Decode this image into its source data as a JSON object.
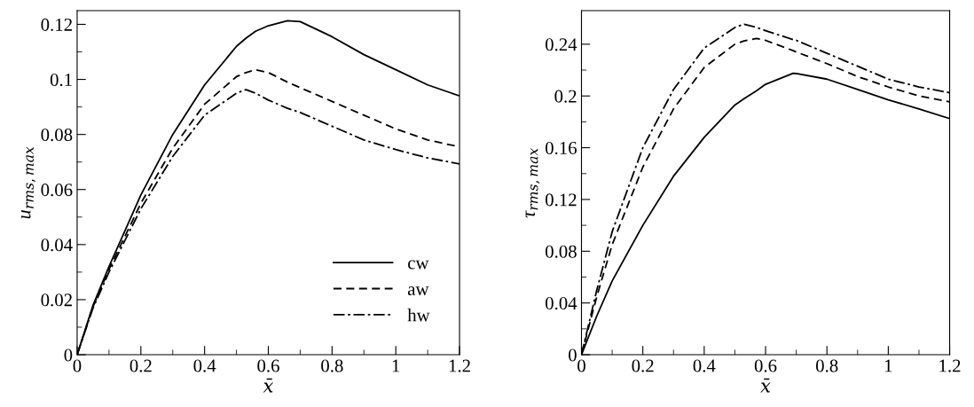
{
  "chart_data": [
    {
      "type": "line",
      "xlabel": "x̄",
      "ylabel": "u$_{rms,max}$",
      "xlim": [
        0,
        1.2
      ],
      "ylim": [
        0,
        0.125
      ],
      "xticks": [
        0,
        0.2,
        0.4,
        0.6,
        0.8,
        1,
        1.2
      ],
      "yticks": [
        0,
        0.02,
        0.04,
        0.06,
        0.08,
        0.1,
        0.12
      ],
      "legend": "bottom right",
      "grid": false,
      "x": [
        0,
        0.05,
        0.1,
        0.2,
        0.3,
        0.4,
        0.5,
        0.53,
        0.56,
        0.6,
        0.66,
        0.7,
        0.8,
        0.9,
        1,
        1.1,
        1.2
      ],
      "series": [
        {
          "name": "cw",
          "color": "#000000",
          "line_style": "solid",
          "values": [
            0,
            0.018,
            0.032,
            0.058,
            0.08,
            0.098,
            0.112,
            0.115,
            0.1175,
            0.1195,
            0.1213,
            0.121,
            0.1155,
            0.109,
            0.1035,
            0.098,
            0.094
          ]
        },
        {
          "name": "aw",
          "color": "#000000",
          "line_style": "dashed",
          "values": [
            0,
            0.0175,
            0.031,
            0.055,
            0.075,
            0.091,
            0.101,
            0.1025,
            0.1035,
            0.1025,
            0.099,
            0.097,
            0.092,
            0.087,
            0.082,
            0.078,
            0.0755
          ]
        },
        {
          "name": "hw",
          "color": "#000000",
          "line_style": "dashdot",
          "values": [
            0,
            0.017,
            0.03,
            0.053,
            0.072,
            0.087,
            0.095,
            0.0963,
            0.095,
            0.0925,
            0.0895,
            0.088,
            0.083,
            0.078,
            0.0745,
            0.0715,
            0.0693
          ]
        }
      ]
    },
    {
      "type": "line",
      "xlabel": "x̄",
      "ylabel": "τ$_{rms,max}$",
      "xlim": [
        0,
        1.2
      ],
      "ylim": [
        0,
        0.266
      ],
      "xticks": [
        0,
        0.2,
        0.4,
        0.6,
        0.8,
        1,
        1.2
      ],
      "yticks": [
        0,
        0.04,
        0.08,
        0.12,
        0.16,
        0.2,
        0.24
      ],
      "legend": false,
      "grid": false,
      "x": [
        0,
        0.05,
        0.1,
        0.2,
        0.3,
        0.4,
        0.5,
        0.53,
        0.57,
        0.6,
        0.69,
        0.7,
        0.8,
        0.9,
        1,
        1.1,
        1.2
      ],
      "series": [
        {
          "color": "#000000",
          "line_style": "solid",
          "values": [
            0,
            0.03,
            0.057,
            0.1,
            0.138,
            0.168,
            0.193,
            0.198,
            0.204,
            0.209,
            0.2175,
            0.2173,
            0.213,
            0.205,
            0.197,
            0.19,
            0.1825
          ]
        },
        {
          "color": "#000000",
          "line_style": "dashed",
          "values": [
            0,
            0.045,
            0.085,
            0.145,
            0.19,
            0.222,
            0.24,
            0.2425,
            0.2445,
            0.243,
            0.235,
            0.234,
            0.225,
            0.215,
            0.207,
            0.2,
            0.1955
          ]
        },
        {
          "color": "#000000",
          "line_style": "dashdot",
          "values": [
            0,
            0.05,
            0.095,
            0.16,
            0.205,
            0.237,
            0.253,
            0.2555,
            0.253,
            0.2505,
            0.2435,
            0.243,
            0.233,
            0.223,
            0.213,
            0.207,
            0.2025
          ]
        }
      ]
    }
  ]
}
